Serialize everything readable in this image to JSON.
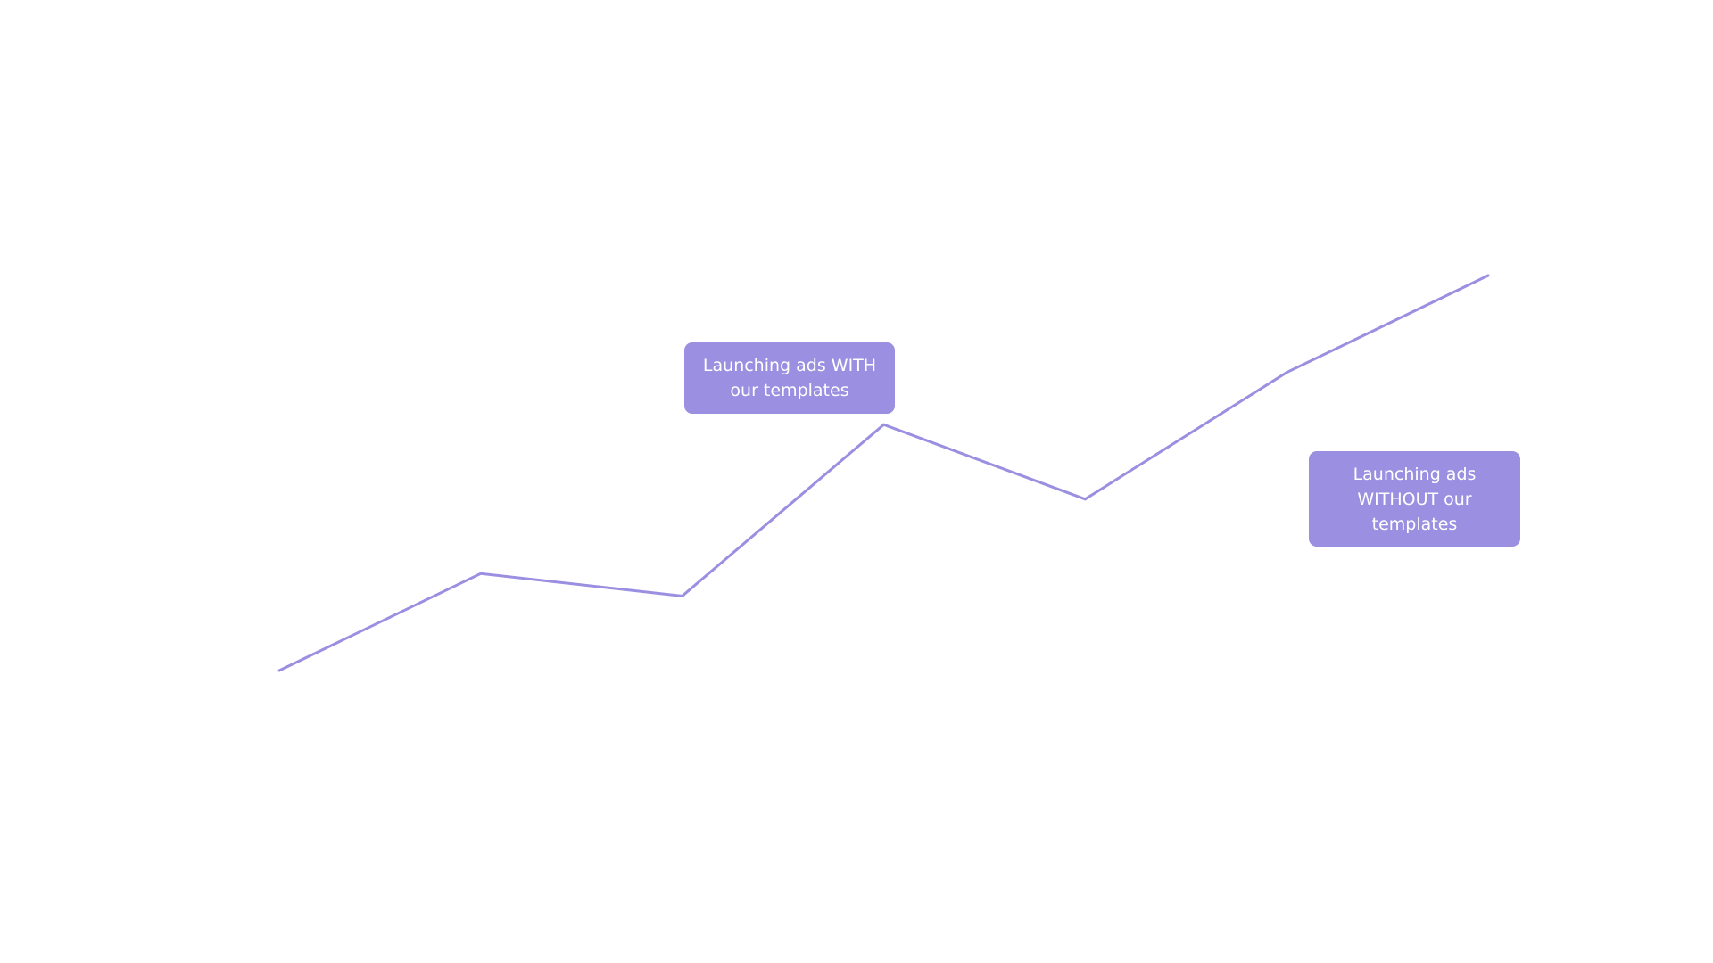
{
  "chart_data": {
    "type": "line",
    "title": "",
    "xlabel": "",
    "ylabel": "",
    "grid": false,
    "legend": "none",
    "x": [
      1,
      2,
      3,
      4,
      5,
      6,
      7
    ],
    "series": [
      {
        "values": [
          1.0,
          2.3,
          2.0,
          4.3,
          3.3,
          5.0,
          6.3
        ]
      }
    ],
    "xlim": [
      1,
      7
    ],
    "ylim": [
      1.0,
      6.3
    ],
    "annotations": [
      {
        "text": "Launching ads WITH\nour templates"
      },
      {
        "text": "Launching ads\nWITHOUT  our\ntemplates"
      }
    ],
    "colors": {
      "line": "#9a8fe0",
      "callout_fill": "#9a8fe0",
      "callout_text": "#ffffff"
    }
  }
}
